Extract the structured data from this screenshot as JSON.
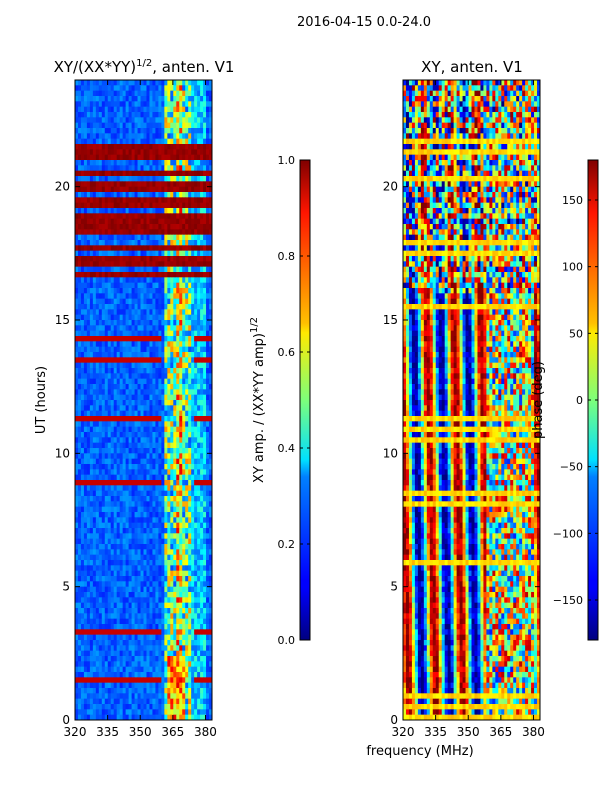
{
  "chart_data": {
    "suptitle": "2016-04-15 0.0-24.0",
    "shared_xlabel": "frequency (MHz)",
    "panels": [
      {
        "type": "heatmap",
        "title_main": "XY/(XX*YY)",
        "title_exp": "1/2",
        "title_suffix": ", anten. V1",
        "ylabel": "UT (hours)",
        "xlim": [
          320,
          383
        ],
        "ylim": [
          0,
          24
        ],
        "xticks": [
          320,
          335,
          350,
          365,
          380
        ],
        "yticks": [
          0,
          5,
          10,
          15,
          20
        ],
        "colorbar": {
          "label_main": "XY amp. / (XX*YY amp)",
          "label_exp": "1/2",
          "range": [
            0.0,
            1.0
          ],
          "ticks": [
            "0.0",
            "0.2",
            "0.4",
            "0.6",
            "0.8",
            "1.0"
          ]
        },
        "description": "normalized XY amplitude, low (blue) over most band, bright channels near 362-372 MHz, saturated (red) time rows mostly between 16.5 and 22 UT"
      },
      {
        "type": "heatmap",
        "title_main": "XY",
        "title_suffix": ", anten. V1",
        "xlim": [
          320,
          383
        ],
        "ylim": [
          0,
          24
        ],
        "xticks": [
          320,
          335,
          350,
          365,
          380
        ],
        "yticks": [
          0,
          5,
          10,
          15,
          20
        ],
        "colorbar": {
          "label_main": "phase (deg)",
          "range": [
            -180,
            180
          ],
          "ticks": [
            "150",
            "100",
            "50",
            "0",
            "−50",
            "−100",
            "−150"
          ],
          "tick_values": [
            150,
            100,
            50,
            0,
            -50,
            -100,
            -150
          ]
        },
        "description": "XY phase, vertical stripes alternating red and blue across frequency, noisy above 16 UT"
      }
    ]
  }
}
